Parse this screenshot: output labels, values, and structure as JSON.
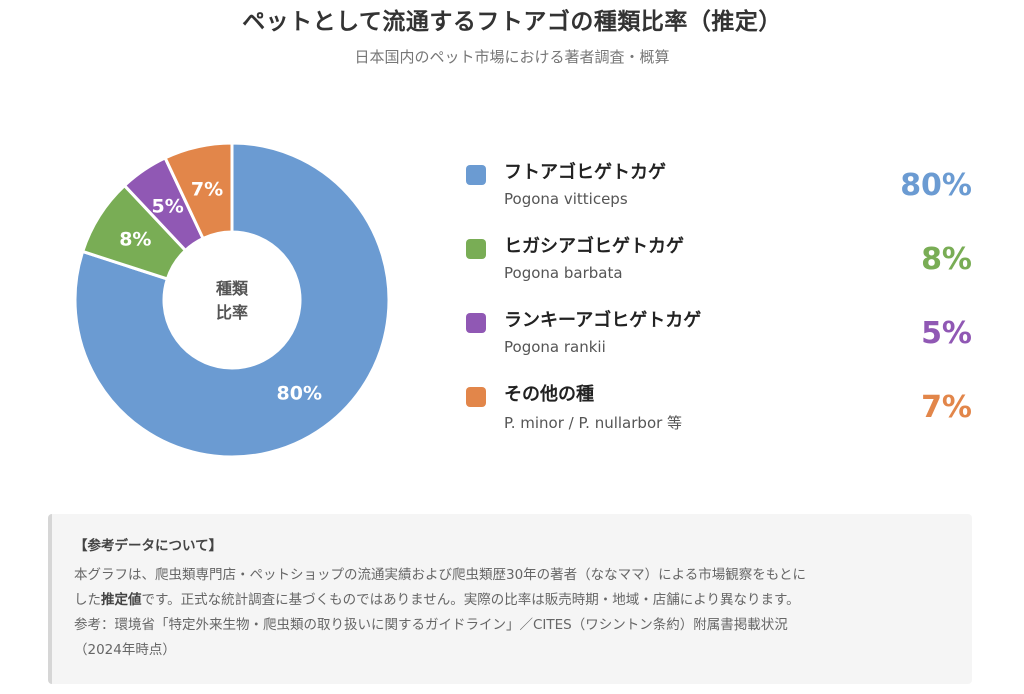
{
  "header": {
    "title": "ペットとして流通するフトアゴの種類比率（推定）",
    "subtitle": "日本国内のペット市場における著者調査・概算"
  },
  "chart_data": {
    "type": "pie",
    "variant": "donut",
    "center_label_lines": [
      "種類",
      "比率"
    ],
    "legend_placement": "right",
    "series": [
      {
        "name": "フトアゴヒゲトカゲ",
        "subname": "Pogona vitticeps",
        "value": 80,
        "label": "80%",
        "color": "#6b9bd2"
      },
      {
        "name": "ヒガシアゴヒゲトカゲ",
        "subname": "Pogona barbata",
        "value": 8,
        "label": "8%",
        "color": "#79ad55"
      },
      {
        "name": "ランキーアゴヒゲトカゲ",
        "subname": "Pogona rankii",
        "value": 5,
        "label": "5%",
        "color": "#9058b4"
      },
      {
        "name": "その他の種",
        "subname": "P. minor / P. nullarbor 等",
        "value": 7,
        "label": "7%",
        "color": "#e2864a"
      }
    ]
  },
  "note": {
    "heading": "【参考データについて】",
    "line1": "本グラフは、爬虫類専門店・ペットショップの流通実績および爬虫類歴30年の著者（ななママ）による市場観察をもとに",
    "line2_pre": "した",
    "line2_bold": "推定値",
    "line2_post": "です。正式な統計調査に基づくものではありません。実際の比率は販売時期・地域・店舗により異なります。",
    "line3": "参考：環境省「特定外来生物・爬虫類の取り扱いに関するガイドライン」／CITES（ワシントン条約）附属書掲載状況",
    "line4": "（2024年時点）"
  }
}
